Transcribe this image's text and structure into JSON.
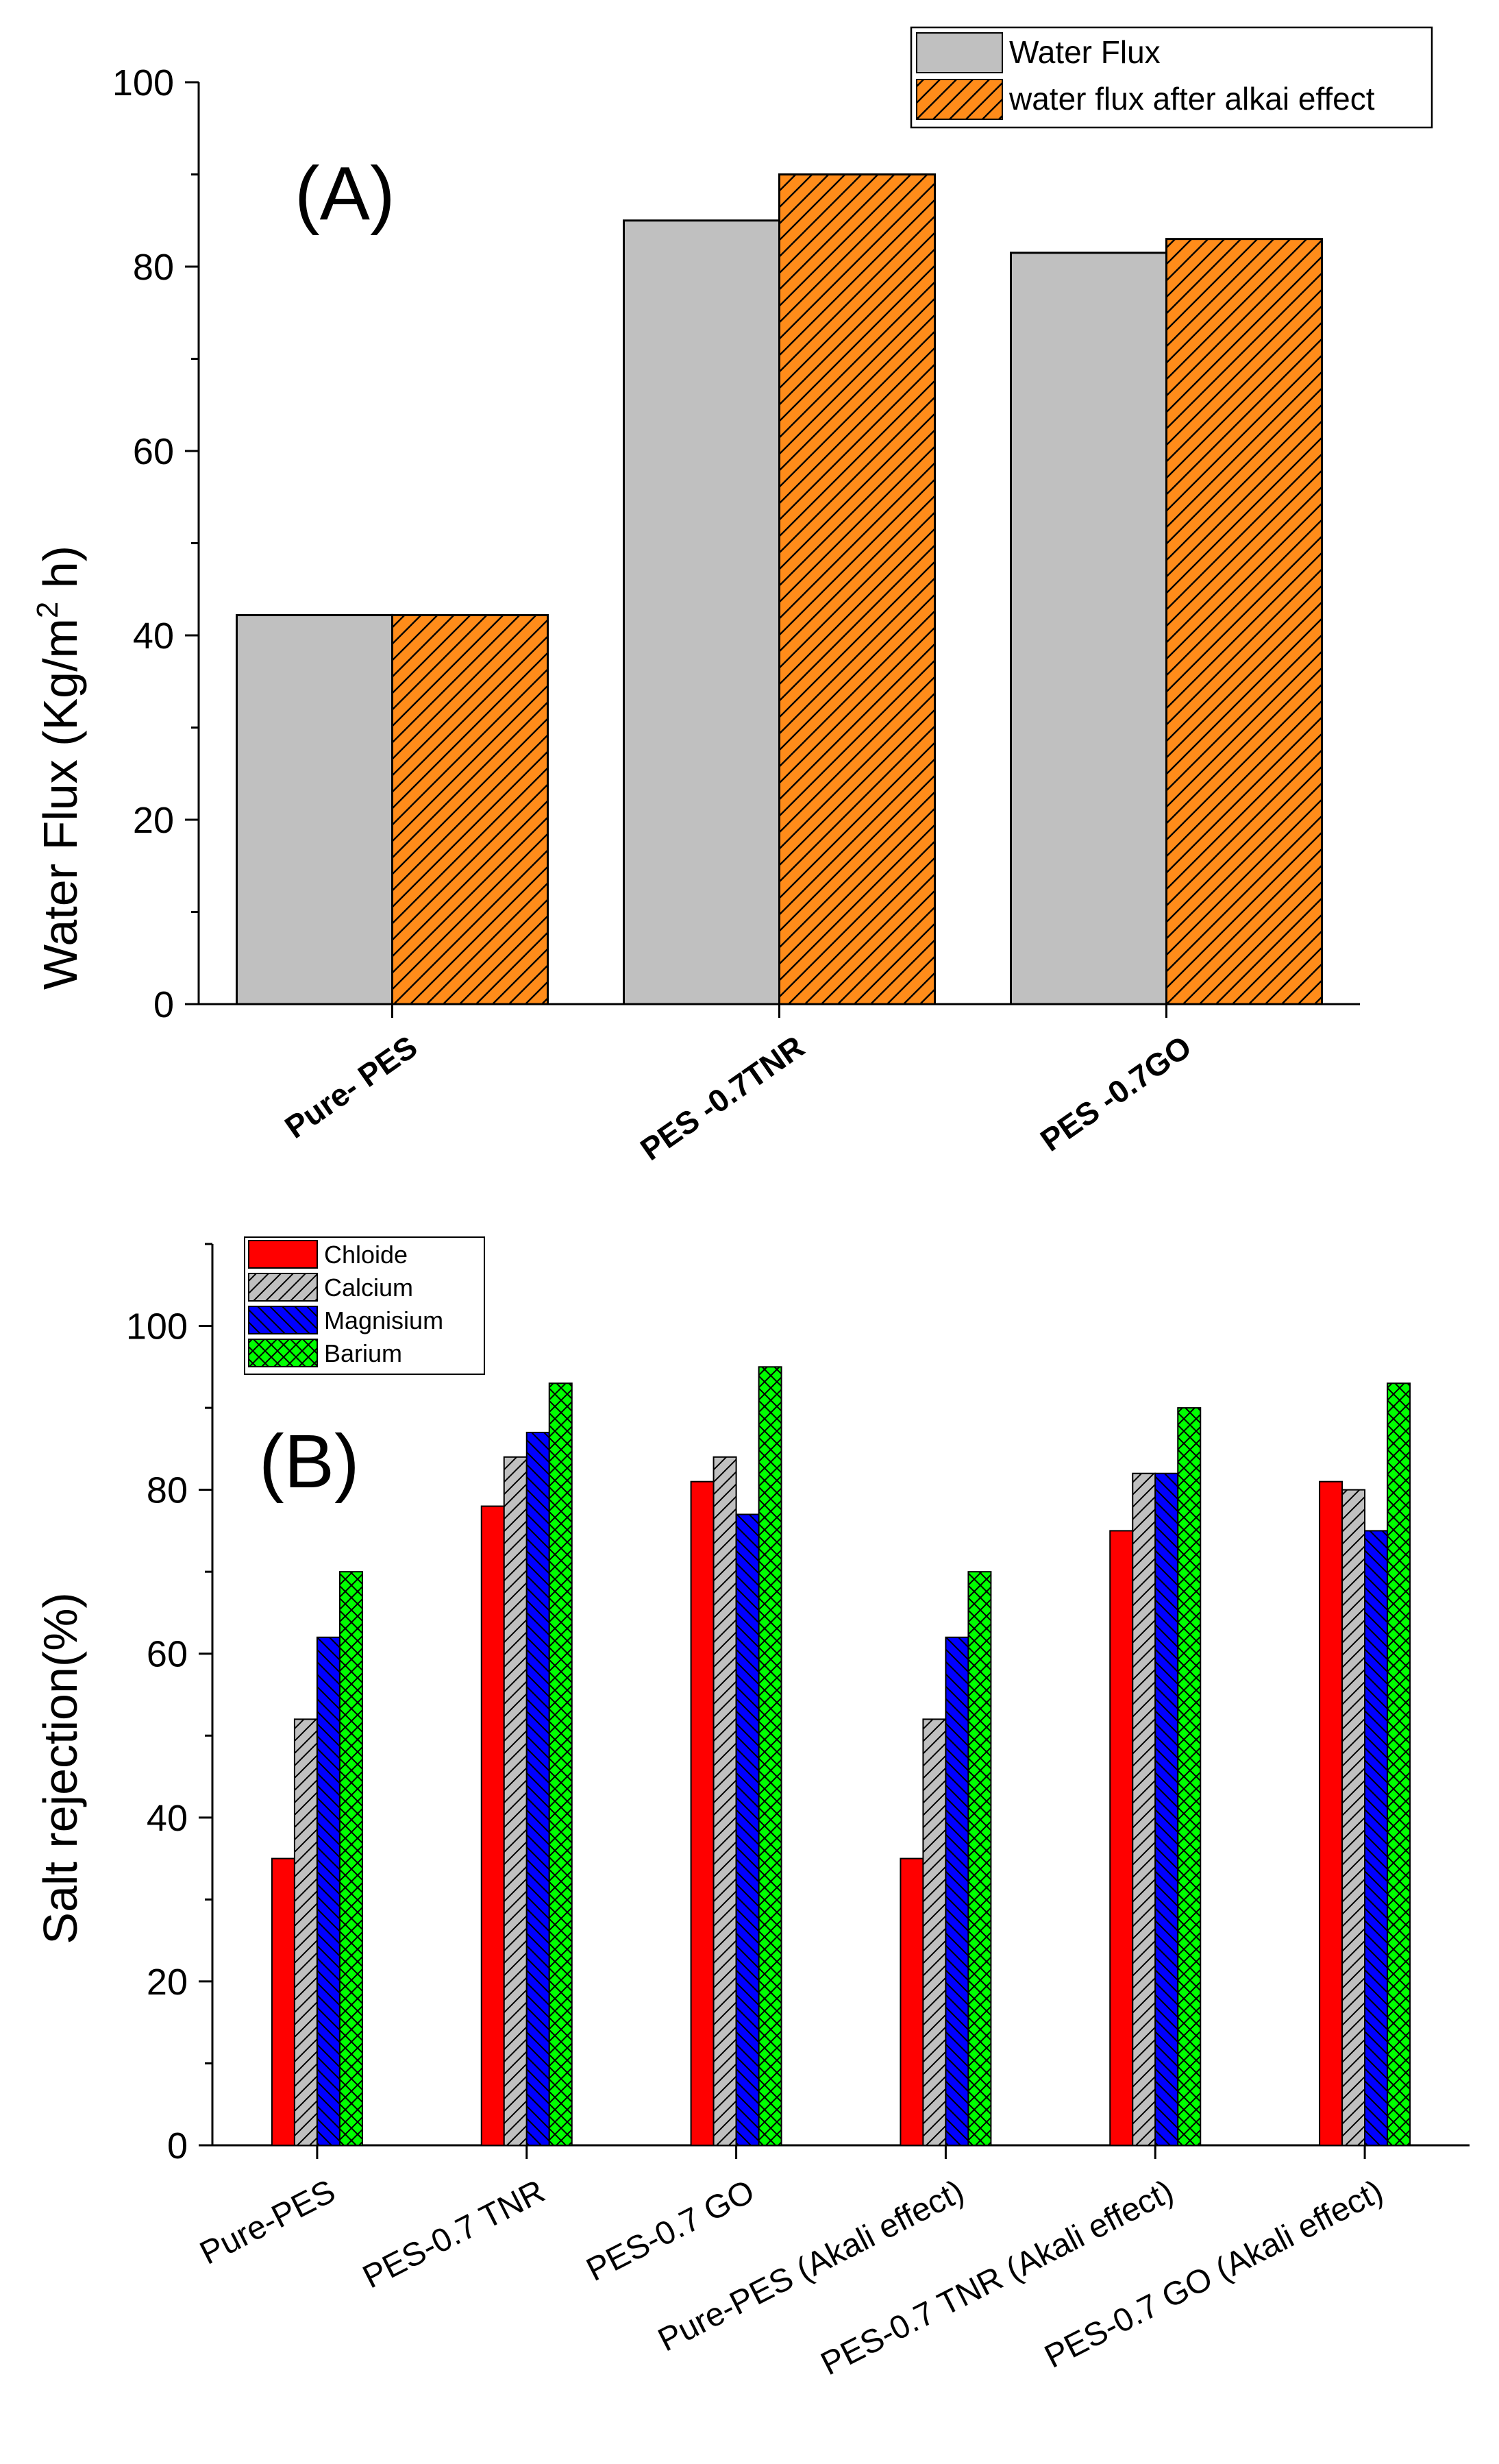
{
  "chart_data": [
    {
      "panel_label": "(A)",
      "type": "bar",
      "title": "",
      "ylabel": "Water Flux (Kg/m² h)",
      "ylabel_parts": [
        "Water Flux (Kg/m",
        "2",
        " h)"
      ],
      "xlabel": "",
      "ylim": [
        0,
        100
      ],
      "yticks": [
        0,
        20,
        40,
        60,
        80,
        100
      ],
      "grid": false,
      "legend": "top-right",
      "categories": [
        "Pure- PES",
        "PES -0.7TNR",
        "PES -0.7GO"
      ],
      "series": [
        {
          "name": "Water Flux",
          "values": [
            42.2,
            85,
            81.5
          ],
          "color": "#c0c0c0",
          "pattern": "none"
        },
        {
          "name": "water flux after alkai effect",
          "values": [
            42.2,
            90,
            83
          ],
          "color": "#ff8c1a",
          "pattern": "diagonal"
        }
      ]
    },
    {
      "panel_label": "(B)",
      "type": "bar",
      "title": "",
      "ylabel": "Salt rejection(%)",
      "xlabel": "",
      "ylim": [
        0,
        110
      ],
      "yticks": [
        0,
        20,
        40,
        60,
        80,
        100
      ],
      "grid": false,
      "legend": "top-left",
      "categories": [
        "Pure-PES",
        "PES-0.7 TNR",
        "PES-0.7 GO",
        "Pure-PES (Akali effect)",
        "PES-0.7 TNR (Akali effect)",
        "PES-0.7 GO (Akali effect)"
      ],
      "series": [
        {
          "name": "Chloide",
          "values": [
            35,
            78,
            81,
            35,
            75,
            81
          ],
          "color": "#ff0000",
          "pattern": "none"
        },
        {
          "name": "Calcium",
          "values": [
            52,
            84,
            84,
            52,
            82,
            80
          ],
          "color": "#c0c0c0",
          "pattern": "diagonal"
        },
        {
          "name": "Magnisium",
          "values": [
            62,
            87,
            77,
            62,
            82,
            75
          ],
          "color": "#0000ff",
          "pattern": "backdiagonal"
        },
        {
          "name": "Barium",
          "values": [
            70,
            93,
            95,
            70,
            90,
            93
          ],
          "color": "#00ff00",
          "pattern": "crosshatch"
        }
      ]
    }
  ]
}
